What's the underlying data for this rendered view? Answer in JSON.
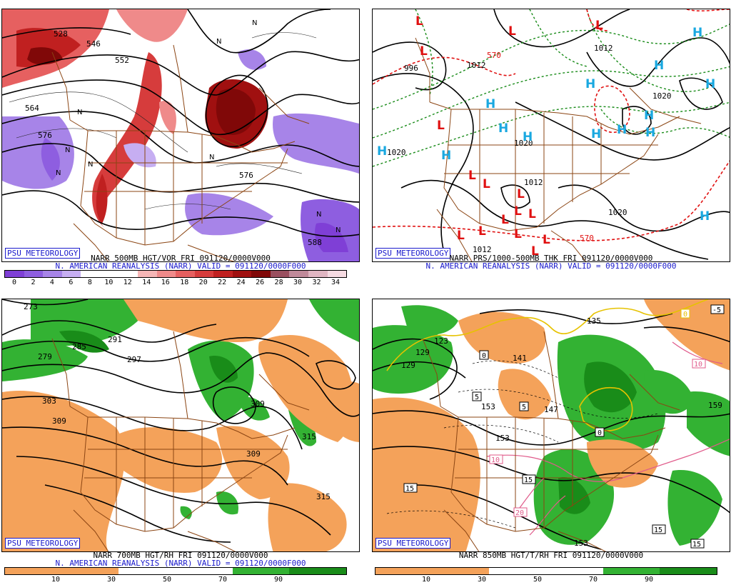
{
  "panels": [
    {
      "id": "p500",
      "caption1": "NARR 500MB HGT/VOR FRI 091120/0000V000",
      "caption2": "N. AMERICAN REANALYSIS (NARR) VALID = 091120/0000F000",
      "logo": "PSU METEOROLOGY",
      "colorbar_labels": [
        "0",
        "2",
        "4",
        "6",
        "8",
        "10",
        "12",
        "14",
        "16",
        "18",
        "20",
        "22",
        "24",
        "26",
        "28",
        "30",
        "32",
        "34"
      ],
      "colorbar_colors": [
        "#7f3fd6",
        "#8e5ee0",
        "#a784e8",
        "#c6aef2",
        "#ffffff",
        "#ffffff",
        "#ffffff",
        "#f6b6b6",
        "#ef8a8a",
        "#e66060",
        "#d63c3c",
        "#c02020",
        "#a01010",
        "#800808",
        "#9a5060",
        "#c08a9a",
        "#e0b6c2",
        "#f6dbe2"
      ],
      "contour_labels": [
        "528",
        "546",
        "552",
        "564",
        "576",
        "576",
        "588"
      ],
      "vorticity_marks": [
        "N",
        "N",
        "N",
        "N",
        "N",
        "N",
        "N",
        "N",
        "N"
      ]
    },
    {
      "id": "pthk",
      "caption1": "NARR PRS/1000-500MB THK FRI 091120/0000V000",
      "caption2": "N. AMERICAN REANALYSIS (NARR) VALID = 091120/0000F000",
      "logo": "PSU METEOROLOGY",
      "contour_labels": [
        "996",
        "1012",
        "1012",
        "1020",
        "1020",
        "1020",
        "1012",
        "1020",
        "1012",
        "570",
        "570"
      ],
      "lows": [
        "L",
        "L",
        "L",
        "L",
        "L",
        "L",
        "L",
        "L",
        "L",
        "L",
        "L",
        "L",
        "L",
        "L",
        "L",
        "L"
      ],
      "highs": [
        "H",
        "H",
        "H",
        "H",
        "H",
        "H",
        "H",
        "H",
        "H",
        "H",
        "H",
        "H",
        "H",
        "H"
      ]
    },
    {
      "id": "p700",
      "caption1": "NARR 700MB HGT/RH FRI 091120/0000V000",
      "caption2": "N. AMERICAN REANALYSIS (NARR) VALID = 091120/0000F000",
      "logo": "PSU METEOROLOGY",
      "colorbar_labels": [
        "10",
        "30",
        "50",
        "70",
        "90"
      ],
      "contour_labels": [
        "279",
        "285",
        "291",
        "297",
        "303",
        "309",
        "309",
        "309",
        "315",
        "315",
        "273"
      ]
    },
    {
      "id": "p850",
      "caption1": "NARR 850MB HGT/T/RH FRI 091120/0000V000",
      "caption2": "",
      "logo": "PSU METEOROLOGY",
      "colorbar_labels": [
        "10",
        "30",
        "50",
        "70",
        "90"
      ],
      "contour_labels": [
        "129",
        "135",
        "141",
        "147",
        "153",
        "153",
        "159",
        "153",
        "123",
        "129"
      ],
      "temp_labels": [
        "0",
        "0",
        "5",
        "5",
        "10",
        "10",
        "15",
        "15",
        "15",
        "15",
        "20",
        "-5",
        "0"
      ]
    }
  ],
  "colors": {
    "rh_dry": "#f4a25a",
    "rh_moist": "#33b233",
    "rh_very_moist": "#198c19",
    "height_contour": "#000000",
    "border": "#8b4513",
    "low_marker": "#e01010",
    "high_marker": "#19a8e0",
    "thickness_cold": "#1a8c1a",
    "thickness_warm": "#e01010"
  }
}
